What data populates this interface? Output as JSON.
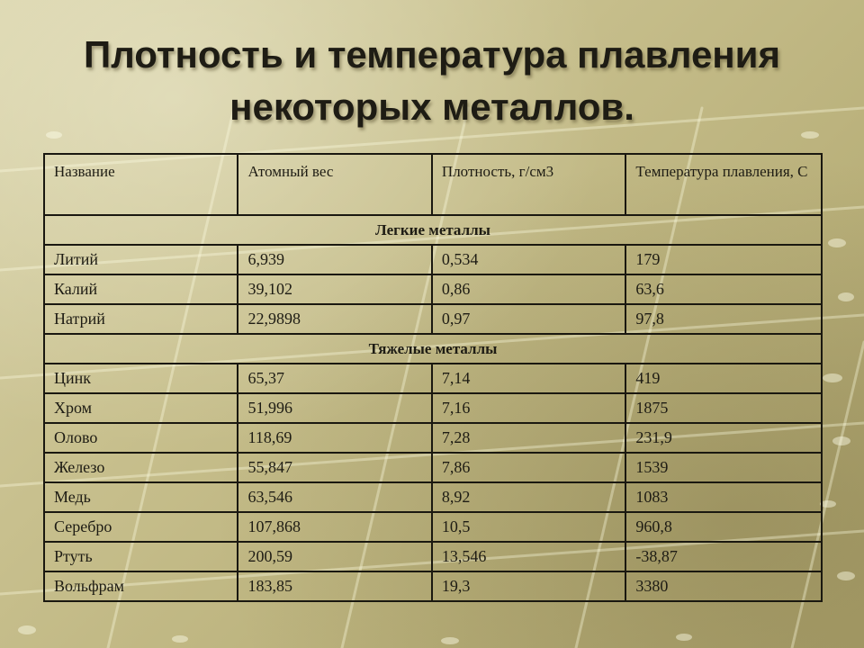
{
  "title": {
    "line1": "Плотность и температура плавления",
    "line2": "некоторых металлов."
  },
  "table": {
    "headers": [
      "Название",
      "Атомный вес",
      "Плотность, г/см3",
      "Температура плавления, С"
    ],
    "sections": [
      {
        "label": "Легкие металлы",
        "rows": [
          [
            "Литий",
            "6,939",
            "0,534",
            "179"
          ],
          [
            "Калий",
            "39,102",
            "0,86",
            "63,6"
          ],
          [
            "Натрий",
            "22,9898",
            "0,97",
            "97,8"
          ]
        ]
      },
      {
        "label": "Тяжелые металлы",
        "rows": [
          [
            "Цинк",
            "65,37",
            "7,14",
            "419"
          ],
          [
            "Хром",
            "51,996",
            "7,16",
            "1875"
          ],
          [
            "Олово",
            "118,69",
            "7,28",
            "231,9"
          ],
          [
            "Железо",
            "55,847",
            "7,86",
            "1539"
          ],
          [
            "Медь",
            "63,546",
            "8,92",
            "1083"
          ],
          [
            "Серебро",
            "107,868",
            "10,5",
            "960,8"
          ],
          [
            "Ртуть",
            "200,59",
            "13,546",
            "-38,87"
          ],
          [
            "Вольфрам",
            "183,85",
            "19,3",
            "3380"
          ]
        ]
      }
    ]
  }
}
